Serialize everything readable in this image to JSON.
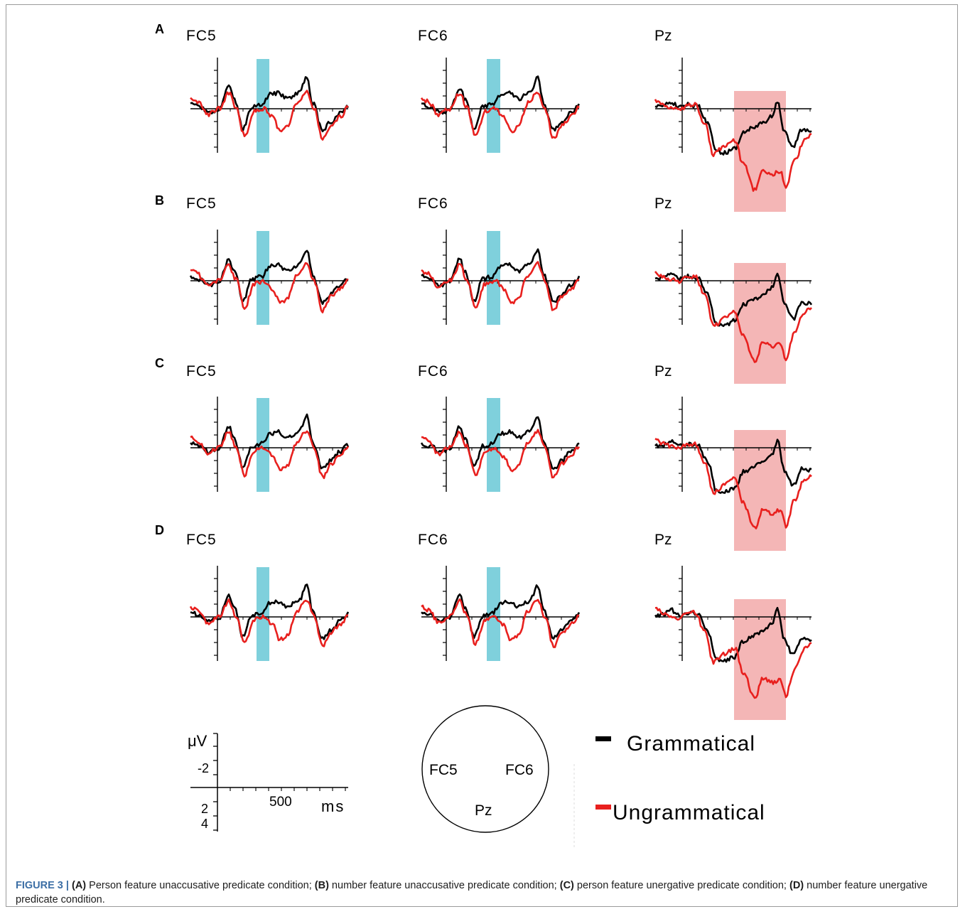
{
  "figure": {
    "rows": [
      {
        "letter": "A",
        "labels": [
          "FC5",
          "FC6",
          "Pz"
        ]
      },
      {
        "letter": "B",
        "labels": [
          "FC5",
          "FC6",
          "Pz"
        ]
      },
      {
        "letter": "C",
        "labels": [
          "FC5",
          "FC6",
          "Pz"
        ]
      },
      {
        "letter": "D",
        "labels": [
          "FC5",
          "FC6",
          "Pz"
        ]
      }
    ],
    "scale_legend": {
      "unit_y": "μV",
      "ticks_y": [
        "-2",
        "2",
        "4"
      ],
      "tick_x": "500",
      "unit_x": "ms"
    },
    "head_map": {
      "electrodes": [
        "FC5",
        "FC6",
        "Pz"
      ]
    },
    "legend": [
      {
        "label": "Grammatical",
        "color": "#000000"
      },
      {
        "label": "Ungrammatical",
        "color": "#e8201e"
      }
    ],
    "highlight_colors": {
      "fc_window": "#7fd0dc",
      "pz_window": "#f4b6b6"
    }
  },
  "caption": {
    "prefix": "FIGURE 3 | ",
    "parts": [
      {
        "tag": "(A)",
        "text": " Person feature unaccusative predicate condition; "
      },
      {
        "tag": "(B)",
        "text": " number feature unaccusative predicate condition; "
      },
      {
        "tag": "(C)",
        "text": " person feature unergative predicate condition; "
      },
      {
        "tag": "(D)",
        "text": " number feature unergative predicate condition."
      }
    ]
  }
}
